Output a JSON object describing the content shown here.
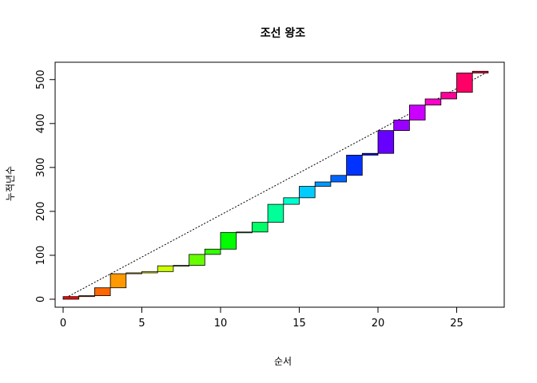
{
  "chart_data": {
    "type": "bar",
    "subtype": "cumulative-step-squares",
    "title": "조선 왕조",
    "xlabel": "순서",
    "ylabel": "누적년수",
    "xlim": [
      0,
      27
    ],
    "ylim": [
      0,
      518
    ],
    "x_ticks": [
      0,
      5,
      10,
      15,
      20,
      25
    ],
    "y_ticks": [
      0,
      100,
      200,
      300,
      400,
      500
    ],
    "grid": false,
    "legend": "none",
    "reference_line": {
      "from": [
        0,
        0
      ],
      "to": [
        27,
        518
      ],
      "style": "dotted"
    },
    "reigns": [
      {
        "order": 1,
        "years": 6,
        "color": "#FF0000"
      },
      {
        "order": 2,
        "years": 2,
        "color": "#FF3300"
      },
      {
        "order": 3,
        "years": 18,
        "color": "#FF6600"
      },
      {
        "order": 4,
        "years": 32,
        "color": "#FF9900"
      },
      {
        "order": 5,
        "years": 2,
        "color": "#FFCC00"
      },
      {
        "order": 6,
        "years": 3,
        "color": "#FFFF00"
      },
      {
        "order": 7,
        "years": 13,
        "color": "#CCFF00"
      },
      {
        "order": 8,
        "years": 1,
        "color": "#99FF00"
      },
      {
        "order": 9,
        "years": 25,
        "color": "#66FF00"
      },
      {
        "order": 10,
        "years": 12,
        "color": "#33FF00"
      },
      {
        "order": 11,
        "years": 38,
        "color": "#00FF00"
      },
      {
        "order": 12,
        "years": 1,
        "color": "#00FF33"
      },
      {
        "order": 13,
        "years": 22,
        "color": "#00FF66"
      },
      {
        "order": 14,
        "years": 41,
        "color": "#00FF99"
      },
      {
        "order": 15,
        "years": 15,
        "color": "#00FFCC"
      },
      {
        "order": 16,
        "years": 26,
        "color": "#00CCFF"
      },
      {
        "order": 17,
        "years": 10,
        "color": "#0099FF"
      },
      {
        "order": 18,
        "years": 15,
        "color": "#0066FF"
      },
      {
        "order": 19,
        "years": 46,
        "color": "#0033FF"
      },
      {
        "order": 20,
        "years": 4,
        "color": "#0000FF"
      },
      {
        "order": 21,
        "years": 52,
        "color": "#6600FF"
      },
      {
        "order": 22,
        "years": 24,
        "color": "#9900FF"
      },
      {
        "order": 23,
        "years": 34,
        "color": "#CC00FF"
      },
      {
        "order": 24,
        "years": 14,
        "color": "#FF00CC"
      },
      {
        "order": 25,
        "years": 15,
        "color": "#FF0099"
      },
      {
        "order": 26,
        "years": 44,
        "color": "#FF0066"
      },
      {
        "order": 27,
        "years": 4,
        "color": "#FF0033"
      }
    ]
  }
}
